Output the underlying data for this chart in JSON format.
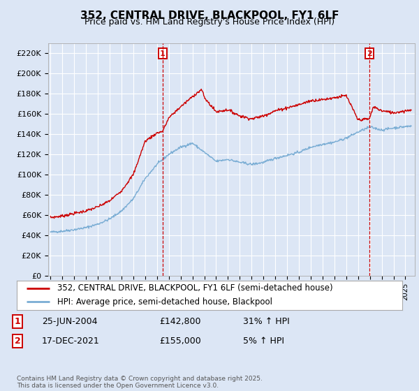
{
  "title": "352, CENTRAL DRIVE, BLACKPOOL, FY1 6LF",
  "subtitle": "Price paid vs. HM Land Registry's House Price Index (HPI)",
  "legend_line1": "352, CENTRAL DRIVE, BLACKPOOL, FY1 6LF (semi-detached house)",
  "legend_line2": "HPI: Average price, semi-detached house, Blackpool",
  "annotation1_label": "1",
  "annotation1_date": "25-JUN-2004",
  "annotation1_price": "£142,800",
  "annotation1_hpi": "31% ↑ HPI",
  "annotation2_label": "2",
  "annotation2_date": "17-DEC-2021",
  "annotation2_price": "£155,000",
  "annotation2_hpi": "5% ↑ HPI",
  "footnote": "Contains HM Land Registry data © Crown copyright and database right 2025.\nThis data is licensed under the Open Government Licence v3.0.",
  "ylim": [
    0,
    230000
  ],
  "yticks": [
    0,
    20000,
    40000,
    60000,
    80000,
    100000,
    120000,
    140000,
    160000,
    180000,
    200000,
    220000
  ],
  "ytick_labels": [
    "£0",
    "£20K",
    "£40K",
    "£60K",
    "£80K",
    "£100K",
    "£120K",
    "£140K",
    "£160K",
    "£180K",
    "£200K",
    "£220K"
  ],
  "background_color": "#dce6f5",
  "grid_color": "#ffffff",
  "red_color": "#cc0000",
  "blue_color": "#7aadd4",
  "sale1_x": 2004.48,
  "sale2_x": 2021.96,
  "xmin": 1994.8,
  "xmax": 2025.8,
  "title_fontsize": 11,
  "subtitle_fontsize": 9,
  "tick_fontsize": 8,
  "legend_fontsize": 8.5,
  "annot_fontsize": 9,
  "footnote_fontsize": 6.5
}
